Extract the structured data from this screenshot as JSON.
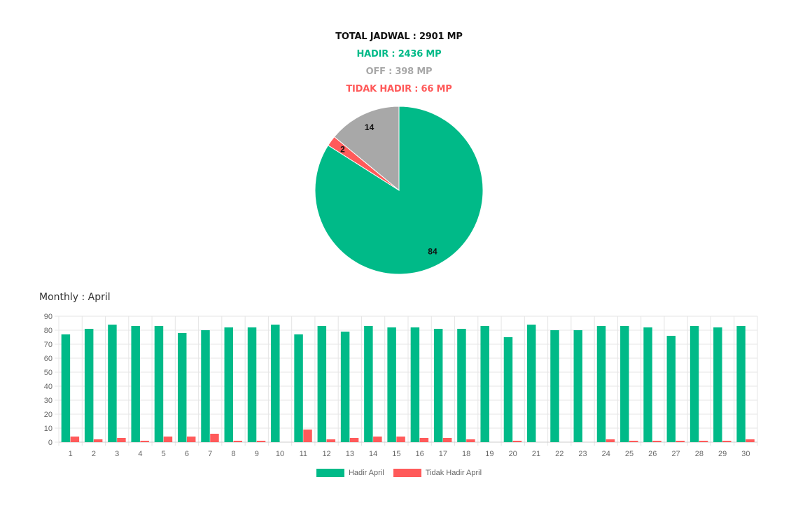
{
  "summary": {
    "total": "TOTAL JADWAL : 2901 MP",
    "hadir": "HADIR : 2436 MP",
    "off": "OFF : 398 MP",
    "tidak_hadir": "TIDAK HADIR : 66 MP"
  },
  "colors": {
    "hadir": "#00BA88",
    "off": "#A8A8A8",
    "tidak_hadir": "#FF5A5A",
    "total": "#111111",
    "grid": "#E5E5E5",
    "tick": "#666666"
  },
  "monthly_title": "Monthly : April",
  "chart_data": [
    {
      "type": "pie",
      "slices": [
        {
          "label": "Hadir",
          "value": 84,
          "color": "#00BA88"
        },
        {
          "label": "Tidak Hadir",
          "value": 2,
          "color": "#FF5A5A"
        },
        {
          "label": "Off",
          "value": 14,
          "color": "#A8A8A8"
        }
      ],
      "data_labels": [
        "84",
        "2",
        "14"
      ]
    },
    {
      "type": "bar",
      "title": "Monthly : April",
      "categories": [
        "1",
        "2",
        "3",
        "4",
        "5",
        "6",
        "7",
        "8",
        "9",
        "10",
        "11",
        "12",
        "13",
        "14",
        "15",
        "16",
        "17",
        "18",
        "19",
        "20",
        "21",
        "22",
        "23",
        "24",
        "25",
        "26",
        "27",
        "28",
        "29",
        "30"
      ],
      "series": [
        {
          "name": "Hadir April",
          "color": "#00BA88",
          "values": [
            77,
            81,
            84,
            83,
            83,
            78,
            80,
            82,
            82,
            84,
            77,
            83,
            79,
            83,
            82,
            82,
            81,
            81,
            83,
            75,
            84,
            80,
            80,
            83,
            83,
            82,
            76,
            83,
            82,
            83
          ]
        },
        {
          "name": "Tidak Hadir April",
          "color": "#FF5A5A",
          "values": [
            4,
            2,
            3,
            1,
            4,
            4,
            6,
            1,
            1,
            0,
            9,
            2,
            3,
            4,
            4,
            3,
            3,
            2,
            0,
            1,
            0,
            0,
            0,
            2,
            1,
            1,
            1,
            1,
            1,
            2
          ]
        }
      ],
      "ylim": [
        0,
        90
      ],
      "yticks": [
        0,
        10,
        20,
        30,
        40,
        50,
        60,
        70,
        80,
        90
      ],
      "grid": true,
      "legend": "bottom"
    }
  ]
}
